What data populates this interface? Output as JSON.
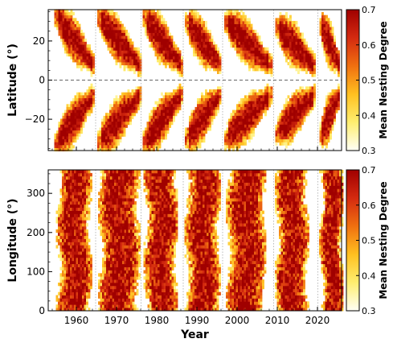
{
  "chart_data": [
    {
      "type": "heatmap",
      "title": "",
      "xlabel": "",
      "ylabel": "Latitude (°)",
      "xlim": [
        1953,
        2026
      ],
      "ylim": [
        -36,
        36
      ],
      "x_ticks": [
        "1960",
        "1970",
        "1980",
        "1990",
        "2000",
        "2010",
        "2020"
      ],
      "y_ticks": [
        "20",
        "0",
        "−20"
      ],
      "y_tick_values": [
        20,
        0,
        -20
      ],
      "equator_line": 0,
      "grid": "dotted vertical lines at cycle minima",
      "cycles": [
        {
          "start": 1954.5,
          "end": 1964.5,
          "lat_max": 33
        },
        {
          "start": 1965.2,
          "end": 1976.0,
          "lat_max": 32
        },
        {
          "start": 1976.5,
          "end": 1986.2,
          "lat_max": 32
        },
        {
          "start": 1987.0,
          "end": 1996.0,
          "lat_max": 30
        },
        {
          "start": 1996.8,
          "end": 2008.5,
          "lat_max": 30
        },
        {
          "start": 2009.5,
          "end": 2019.3,
          "lat_max": 27
        },
        {
          "start": 2020.5,
          "end": 2025.5,
          "lat_max": 28
        }
      ],
      "colorbar": {
        "label": "Mean Nesting Degree",
        "min": 0.3,
        "max": 0.7,
        "ticks": [
          "0.7",
          "0.6",
          "0.5",
          "0.4",
          "0.3"
        ],
        "colormap": "hot_r"
      }
    },
    {
      "type": "heatmap",
      "title": "",
      "xlabel": "Year",
      "ylabel": "Longitude (°)",
      "xlim": [
        1953,
        2026
      ],
      "ylim": [
        0,
        360
      ],
      "x_ticks": [
        "1960",
        "1970",
        "1980",
        "1990",
        "2000",
        "2010",
        "2020"
      ],
      "x_tick_values": [
        1960,
        1970,
        1980,
        1990,
        2000,
        2010,
        2020
      ],
      "y_ticks": [
        "300",
        "200",
        "100",
        "0"
      ],
      "y_tick_values": [
        300,
        200,
        100,
        0
      ],
      "grid": "dotted vertical lines at cycle minima",
      "activity_bands": [
        {
          "start": 1955.5,
          "end": 1963.0
        },
        {
          "start": 1966.0,
          "end": 1975.0
        },
        {
          "start": 1977.3,
          "end": 1984.5
        },
        {
          "start": 1987.5,
          "end": 1995.0
        },
        {
          "start": 1997.8,
          "end": 2006.5
        },
        {
          "start": 2010.0,
          "end": 2017.0
        },
        {
          "start": 2021.0,
          "end": 2025.7
        }
      ],
      "colorbar": {
        "label": "Mean Nesting Degree",
        "min": 0.3,
        "max": 0.7,
        "ticks": [
          "0.7",
          "0.6",
          "0.5",
          "0.4",
          "0.3"
        ],
        "colormap": "hot_r"
      }
    }
  ]
}
